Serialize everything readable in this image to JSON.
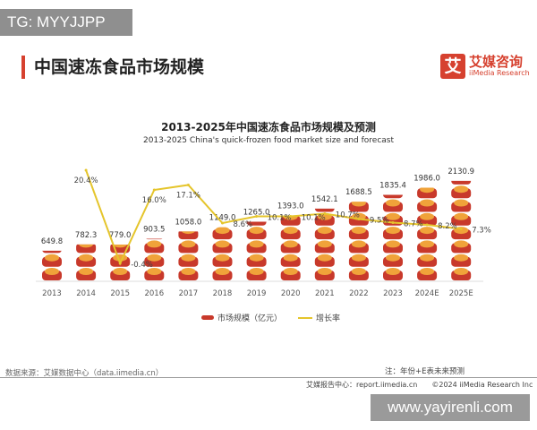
{
  "watermark_top": "TG: MYYJJPP",
  "page_title": "中国速冻食品市场规模",
  "logo": {
    "mark": "艾",
    "cn": "艾媒咨询",
    "en": "iiMedia Research"
  },
  "chart_data": {
    "type": "bar+line",
    "title": "2013-2025年中国速冻食品市场规模及预测",
    "subtitle": "2013-2025 China's quick-frozen food market size and forecast",
    "categories": [
      "2013",
      "2014",
      "2015",
      "2016",
      "2017",
      "2018",
      "2019",
      "2020",
      "2021",
      "2022",
      "2023",
      "2024E",
      "2025E"
    ],
    "series": [
      {
        "name": "市场规模（亿元）",
        "type": "bar",
        "color": "#c8392b",
        "values": [
          649.8,
          782.3,
          779.0,
          903.5,
          1058.0,
          1149.0,
          1265.0,
          1393.0,
          1542.1,
          1688.5,
          1835.4,
          1986.0,
          2130.9
        ],
        "labels": [
          "649.8",
          "782.3",
          "779.0",
          "903.5",
          "1058.0",
          "1149.0",
          "1265.0",
          "1393.0",
          "1542.1",
          "1688.5",
          "1835.4",
          "1986.0",
          "2130.9"
        ]
      },
      {
        "name": "增长率",
        "type": "line",
        "color": "#e5c52c",
        "values": [
          null,
          20.4,
          -0.4,
          16.0,
          17.1,
          8.6,
          10.1,
          10.1,
          10.7,
          9.5,
          8.7,
          8.2,
          7.3
        ],
        "labels": [
          "",
          "20.4%",
          "-0.4%",
          "16.0%",
          "17.1%",
          "8.6%",
          "10.1%",
          "10.1%",
          "10.7%",
          "9.5%",
          "8.7%",
          "8.2%",
          "7.3%"
        ]
      }
    ],
    "legend_position": "bottom",
    "grid": false
  },
  "footer": {
    "source": "数据来源：艾媒数据中心（data.iimedia.cn）",
    "note": "注：年份+E表未来预测",
    "report": "艾媒报告中心：report.iimedia.cn",
    "copyright": "©2024  iiMedia Research  Inc"
  },
  "watermark_bottom": "www.yayirenli.com"
}
